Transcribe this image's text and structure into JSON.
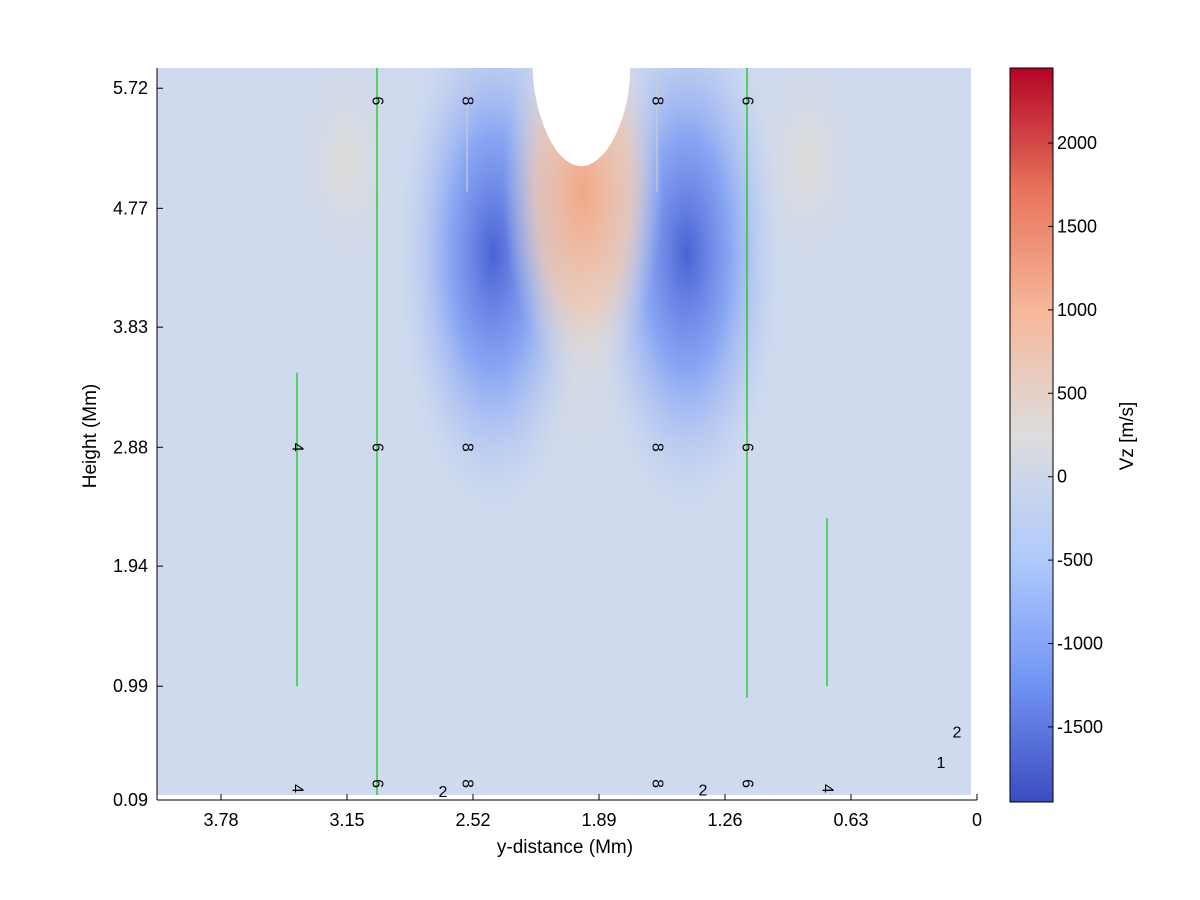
{
  "chart_data": {
    "type": "heatmap",
    "title": "",
    "xlabel": "y-distance (Mm)",
    "ylabel": "Height (Mm)",
    "x_reversed": true,
    "xlim": [
      0,
      4.1
    ],
    "ylim": [
      0.09,
      5.88
    ],
    "xticks": [
      3.78,
      3.15,
      2.52,
      1.89,
      1.26,
      0.63,
      0
    ],
    "xtick_labels": [
      "3.78",
      "3.15",
      "2.52",
      "1.89",
      "1.26",
      "0.63",
      "0"
    ],
    "yticks": [
      0.09,
      0.99,
      1.94,
      2.88,
      3.83,
      4.77,
      5.72
    ],
    "ytick_labels": [
      "0.09",
      "0.99",
      "1.94",
      "2.88",
      "3.83",
      "4.77",
      "5.72"
    ],
    "colorbar": {
      "label": "Vz [m/s]",
      "range": [
        -1950,
        2450
      ],
      "ticks": [
        -1500,
        -1000,
        -500,
        0,
        500,
        1000,
        1500,
        2000
      ],
      "tick_labels": [
        "-1500",
        "-1000",
        "-500",
        "0",
        "500",
        "1000",
        "1500",
        "2000"
      ],
      "colormap": "coolwarm",
      "colors": [
        "#3b4cc0",
        "#7396f5",
        "#b0cbfc",
        "#dddddd",
        "#f6b89c",
        "#e7745b",
        "#b40426"
      ]
    },
    "background_value": -200,
    "features": [
      {
        "kind": "upflow-saturated",
        "x": 1.97,
        "y": 5.45,
        "value": 2450
      },
      {
        "kind": "upflow-column",
        "x": 1.97,
        "y": 4.0,
        "value": 500
      },
      {
        "kind": "downflow",
        "x": 2.42,
        "y": 5.6,
        "value": -1900
      },
      {
        "kind": "downflow",
        "x": 1.45,
        "y": 5.6,
        "value": -1900
      },
      {
        "kind": "weak-upflow",
        "x": 3.15,
        "y": 5.6,
        "value": 300
      },
      {
        "kind": "weak-upflow",
        "x": 0.85,
        "y": 5.6,
        "value": 300
      }
    ],
    "field_lines": [
      {
        "x": 3.4,
        "y_range": [
          0.99,
          3.47
        ],
        "color": "#00cc00",
        "labels": [
          {
            "text": "4",
            "y": 2.88
          },
          {
            "text": "4",
            "y": 0.18
          }
        ]
      },
      {
        "x": 3.0,
        "y_range": [
          0.09,
          5.88
        ],
        "color": "#00cc00",
        "labels": [
          {
            "text": "6",
            "y": 5.62
          },
          {
            "text": "6",
            "y": 2.88
          },
          {
            "text": "6",
            "y": 0.22
          }
        ]
      },
      {
        "x": 2.55,
        "y_range": [
          4.9,
          5.88
        ],
        "color": "#cccccc",
        "labels": [
          {
            "text": "8",
            "y": 5.62
          },
          {
            "text": "8",
            "y": 2.88
          },
          {
            "text": "8",
            "y": 0.22
          }
        ]
      },
      {
        "x": 1.6,
        "y_range": [
          4.9,
          5.88
        ],
        "color": "#cccccc",
        "labels": [
          {
            "text": "8",
            "y": 5.62
          },
          {
            "text": "8",
            "y": 2.88
          },
          {
            "text": "8",
            "y": 0.22
          }
        ]
      },
      {
        "x": 1.15,
        "y_range": [
          0.9,
          5.88
        ],
        "color": "#00cc00",
        "labels": [
          {
            "text": "6",
            "y": 5.62
          },
          {
            "text": "6",
            "y": 2.88
          },
          {
            "text": "6",
            "y": 0.22
          }
        ]
      },
      {
        "x": 0.75,
        "y_range": [
          0.99,
          2.32
        ],
        "color": "#00cc00",
        "labels": [
          {
            "text": "4",
            "y": 0.18
          }
        ]
      }
    ],
    "contour_labels": [
      {
        "text": "2",
        "x": 2.67,
        "y": 0.15
      },
      {
        "text": "2",
        "x": 1.37,
        "y": 0.16
      },
      {
        "text": "2",
        "x": 0.1,
        "y": 0.62
      },
      {
        "text": "1",
        "x": 0.18,
        "y": 0.38
      }
    ]
  }
}
